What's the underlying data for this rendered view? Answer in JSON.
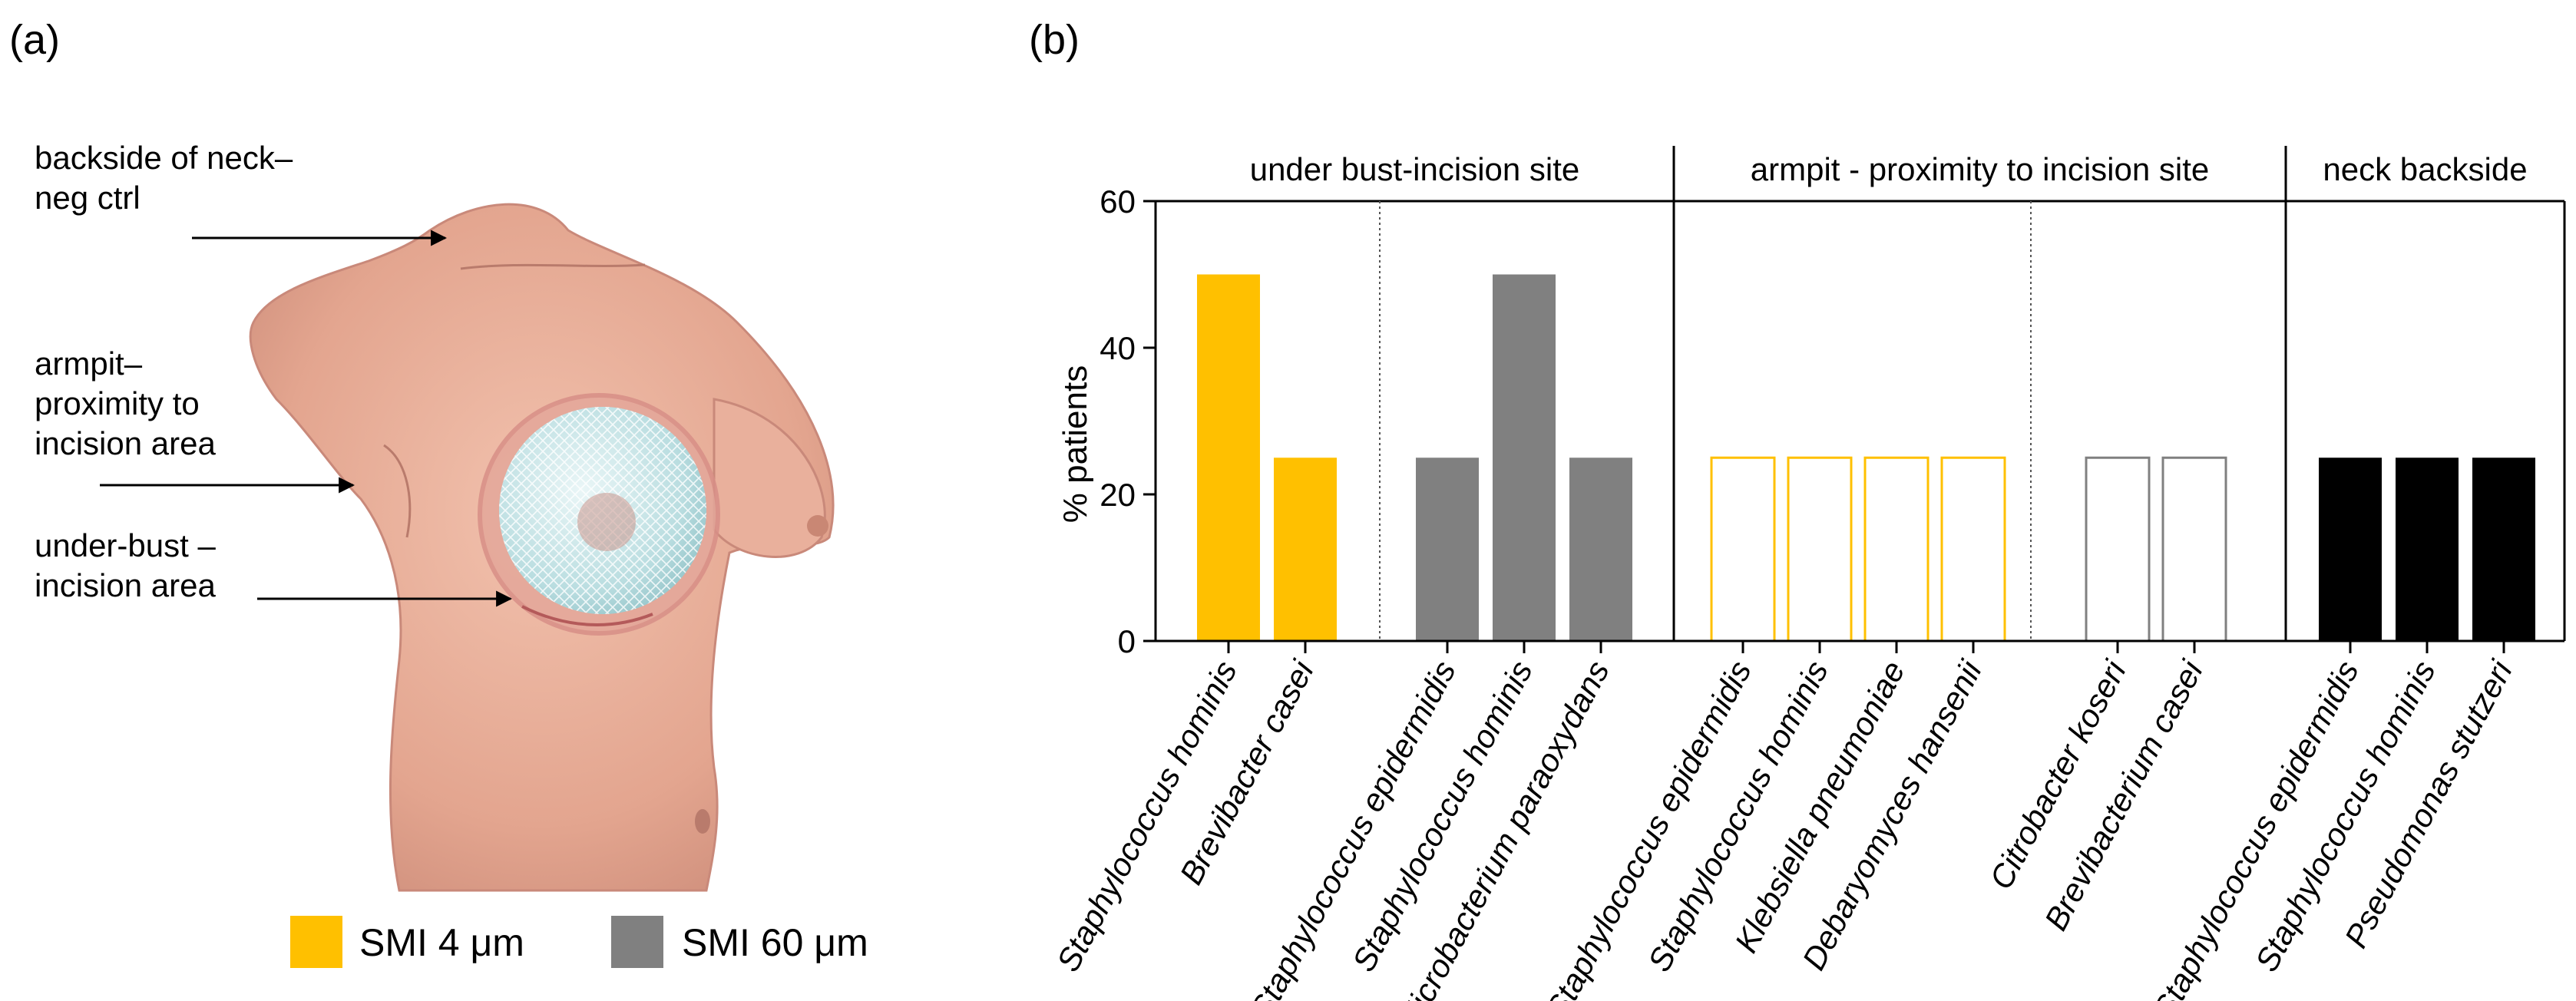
{
  "panels": {
    "a": "(a)",
    "b": "(b)"
  },
  "annotations": [
    {
      "lines": [
        "backside of neck–",
        "neg ctrl"
      ]
    },
    {
      "lines": [
        "armpit–",
        "proximity to",
        "incision area"
      ]
    },
    {
      "lines": [
        "under-bust –",
        "incision area"
      ]
    }
  ],
  "legend": [
    {
      "label": "SMI 4 μm",
      "color": "#FFC000"
    },
    {
      "label": "SMI 60 μm",
      "color": "#808080"
    }
  ],
  "chart_data": {
    "type": "bar",
    "ylabel": "% patients",
    "ylim": [
      0,
      60
    ],
    "yticks": [
      0,
      20,
      40,
      60
    ],
    "section_headers": [
      "under bust-incision site",
      "armpit - proximity to incision site",
      "neck backside"
    ],
    "bars": [
      {
        "category": "Staphylococcus hominis",
        "value": 50,
        "section": 0,
        "series": "SMI 4 μm",
        "style": "filled",
        "color": "#FFC000"
      },
      {
        "category": "Brevibacter casei",
        "value": 25,
        "section": 0,
        "series": "SMI 4 μm",
        "style": "filled",
        "color": "#FFC000"
      },
      {
        "category": "Staphylococcus epidermidis",
        "value": 25,
        "section": 0,
        "series": "SMI 60 μm",
        "style": "filled",
        "color": "#808080"
      },
      {
        "category": "Staphylococcus hominis",
        "value": 50,
        "section": 0,
        "series": "SMI 60 μm",
        "style": "filled",
        "color": "#808080"
      },
      {
        "category": "Microbacterium paraoxydans",
        "value": 25,
        "section": 0,
        "series": "SMI 60 μm",
        "style": "filled",
        "color": "#808080"
      },
      {
        "category": "Staphylococcus epidermidis",
        "value": 25,
        "section": 1,
        "series": "SMI 4 μm",
        "style": "outline",
        "color": "#FFC000"
      },
      {
        "category": "Staphylococcus hominis",
        "value": 25,
        "section": 1,
        "series": "SMI 4 μm",
        "style": "outline",
        "color": "#FFC000"
      },
      {
        "category": "Klebsiella pneumoniae",
        "value": 25,
        "section": 1,
        "series": "SMI 4 μm",
        "style": "outline",
        "color": "#FFC000"
      },
      {
        "category": "Debaryomyces hansenii",
        "value": 25,
        "section": 1,
        "series": "SMI 4 μm",
        "style": "outline",
        "color": "#FFC000"
      },
      {
        "category": "Citrobacter koseri",
        "value": 25,
        "section": 1,
        "series": "SMI 60 μm",
        "style": "outline",
        "color": "#808080"
      },
      {
        "category": "Brevibacterium casei",
        "value": 25,
        "section": 1,
        "series": "SMI 60 μm",
        "style": "outline",
        "color": "#808080"
      },
      {
        "category": "Staphylococcus epidermidis",
        "value": 25,
        "section": 2,
        "series": "neck backside",
        "style": "filled",
        "color": "#000000"
      },
      {
        "category": "Staphylococcus hominis",
        "value": 25,
        "section": 2,
        "series": "neck backside",
        "style": "filled",
        "color": "#000000"
      },
      {
        "category": "Pseudomonas stutzeri",
        "value": 25,
        "section": 2,
        "series": "neck backside",
        "style": "filled",
        "color": "#000000"
      }
    ]
  }
}
